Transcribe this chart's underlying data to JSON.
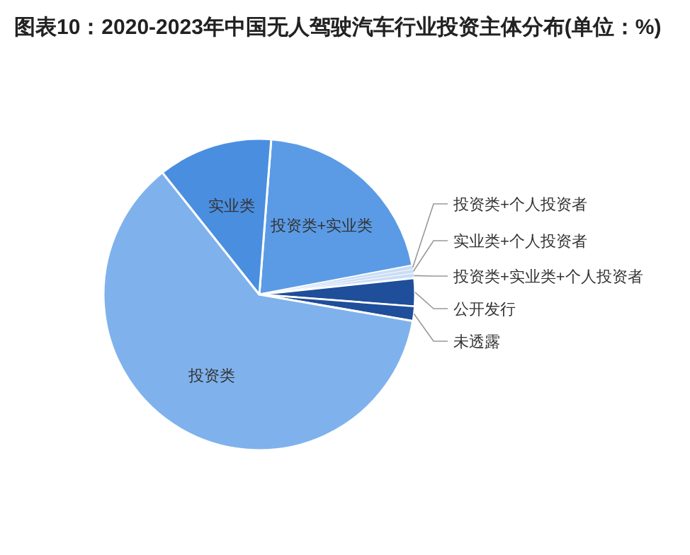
{
  "chart_data": {
    "type": "pie",
    "title": "图表10：2020-2023年中国无人驾驶汽车行业投资主体分布(单位：%)",
    "categories": [
      "投资类+实业类",
      "投资类+个人投资者",
      "实业类+个人投资者",
      "投资类+实业类+个人投资者",
      "公开发行",
      "未透露",
      "投资类",
      "实业类"
    ],
    "values": [
      20.8,
      0.4,
      0.4,
      0.5,
      2.9,
      1.5,
      61.6,
      11.9
    ],
    "colors": [
      "#5b9be6",
      "#c9ddf5",
      "#c9ddf5",
      "#c9ddf5",
      "#1f4e9a",
      "#1f4e9a",
      "#7fb2ec",
      "#4a8ee0"
    ]
  }
}
